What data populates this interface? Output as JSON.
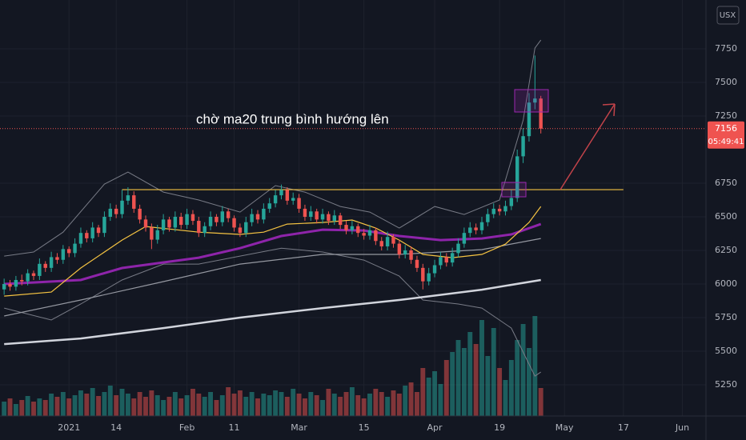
{
  "chart_data": {
    "type": "candlestick",
    "currency": "USX",
    "annotation": "chờ ma20 trung bình hướng lên",
    "countdown": "05:49:41",
    "up_color": "#26a69a",
    "down_color": "#ef5350",
    "grid": true,
    "xlim": [
      -0.7,
      119
    ],
    "xticks": [
      {
        "value": 11,
        "label": "2021"
      },
      {
        "value": 19,
        "label": "14"
      },
      {
        "value": 31,
        "label": "Feb"
      },
      {
        "value": 39,
        "label": "11"
      },
      {
        "value": 50,
        "label": "Mar"
      },
      {
        "value": 61,
        "label": "15"
      },
      {
        "value": 73,
        "label": "Apr"
      },
      {
        "value": 84,
        "label": "19"
      },
      {
        "value": 95,
        "label": "May"
      },
      {
        "value": 105,
        "label": "17"
      },
      {
        "value": 115,
        "label": "Jun"
      }
    ],
    "ylim": [
      5018,
      8113
    ],
    "yticks": [
      5250,
      5500,
      5750,
      6000,
      6250,
      6500,
      6750,
      7250,
      7500,
      7750
    ],
    "volume_lim": [
      0,
      150
    ],
    "x": [
      0,
      1,
      2,
      3,
      4,
      5,
      6,
      7,
      8,
      9,
      10,
      11,
      12,
      13,
      14,
      15,
      16,
      17,
      18,
      19,
      20,
      21,
      22,
      23,
      24,
      25,
      26,
      27,
      28,
      29,
      30,
      31,
      32,
      33,
      34,
      35,
      36,
      37,
      38,
      39,
      40,
      41,
      42,
      43,
      44,
      45,
      46,
      47,
      48,
      49,
      50,
      51,
      52,
      53,
      54,
      55,
      56,
      57,
      58,
      59,
      60,
      61,
      62,
      63,
      64,
      65,
      66,
      67,
      68,
      69,
      70,
      71,
      72,
      73,
      74,
      75,
      76,
      77,
      78,
      79,
      80,
      81,
      82,
      83,
      84,
      85,
      86,
      87,
      88,
      89,
      90,
      91
    ],
    "open": [
      5960,
      6000,
      5980,
      6030,
      6020,
      6080,
      6060,
      6150,
      6120,
      6200,
      6180,
      6260,
      6230,
      6300,
      6380,
      6340,
      6420,
      6380,
      6500,
      6560,
      6520,
      6620,
      6660,
      6560,
      6480,
      6420,
      6330,
      6400,
      6480,
      6420,
      6500,
      6440,
      6520,
      6470,
      6380,
      6430,
      6500,
      6460,
      6540,
      6490,
      6420,
      6380,
      6460,
      6520,
      6480,
      6560,
      6600,
      6660,
      6700,
      6620,
      6640,
      6560,
      6500,
      6540,
      6480,
      6520,
      6470,
      6510,
      6440,
      6400,
      6430,
      6380,
      6360,
      6400,
      6320,
      6280,
      6350,
      6300,
      6220,
      6250,
      6180,
      6120,
      6020,
      6080,
      6140,
      6200,
      6160,
      6230,
      6300,
      6380,
      6420,
      6400,
      6460,
      6520,
      6560,
      6540,
      6580,
      6640,
      6950,
      7100,
      7350,
      7380
    ],
    "high": [
      6040,
      6030,
      6060,
      6070,
      6110,
      6100,
      6190,
      6170,
      6240,
      6230,
      6290,
      6280,
      6340,
      6420,
      6400,
      6460,
      6440,
      6540,
      6600,
      6590,
      6700,
      6720,
      6690,
      6590,
      6510,
      6450,
      6440,
      6520,
      6500,
      6540,
      6530,
      6560,
      6550,
      6500,
      6460,
      6540,
      6520,
      6580,
      6560,
      6510,
      6450,
      6500,
      6560,
      6550,
      6600,
      6640,
      6700,
      6740,
      6720,
      6680,
      6670,
      6590,
      6580,
      6560,
      6560,
      6540,
      6550,
      6530,
      6470,
      6470,
      6450,
      6410,
      6440,
      6420,
      6350,
      6390,
      6370,
      6330,
      6290,
      6280,
      6210,
      6150,
      6120,
      6180,
      6240,
      6230,
      6270,
      6340,
      6420,
      6460,
      6450,
      6500,
      6560,
      6600,
      6590,
      6620,
      6700,
      7000,
      7160,
      7420,
      7700,
      7400
    ],
    "low": [
      5920,
      5950,
      5950,
      5990,
      5990,
      6030,
      6030,
      6090,
      6090,
      6150,
      6150,
      6200,
      6200,
      6270,
      6310,
      6310,
      6350,
      6350,
      6470,
      6490,
      6490,
      6590,
      6530,
      6450,
      6390,
      6260,
      6300,
      6370,
      6390,
      6390,
      6410,
      6410,
      6440,
      6350,
      6350,
      6400,
      6430,
      6430,
      6460,
      6390,
      6350,
      6350,
      6430,
      6450,
      6450,
      6530,
      6570,
      6630,
      6590,
      6590,
      6530,
      6470,
      6470,
      6450,
      6450,
      6440,
      6440,
      6410,
      6370,
      6370,
      6350,
      6330,
      6330,
      6290,
      6250,
      6250,
      6270,
      6190,
      6190,
      6150,
      6090,
      5960,
      5990,
      6050,
      6110,
      6130,
      6130,
      6200,
      6270,
      6350,
      6370,
      6370,
      6430,
      6490,
      6510,
      6510,
      6550,
      6610,
      6900,
      7060,
      7300,
      7120
    ],
    "close": [
      6000,
      5980,
      6030,
      6020,
      6080,
      6060,
      6150,
      6120,
      6200,
      6180,
      6260,
      6230,
      6300,
      6380,
      6340,
      6420,
      6380,
      6500,
      6560,
      6520,
      6620,
      6660,
      6560,
      6480,
      6420,
      6330,
      6400,
      6480,
      6420,
      6500,
      6440,
      6520,
      6470,
      6380,
      6430,
      6500,
      6460,
      6540,
      6490,
      6420,
      6380,
      6460,
      6520,
      6480,
      6560,
      6600,
      6660,
      6700,
      6620,
      6640,
      6560,
      6500,
      6540,
      6480,
      6520,
      6470,
      6510,
      6440,
      6400,
      6430,
      6380,
      6360,
      6400,
      6320,
      6280,
      6350,
      6300,
      6220,
      6250,
      6180,
      6120,
      6020,
      6080,
      6140,
      6200,
      6160,
      6230,
      6300,
      6380,
      6420,
      6400,
      6460,
      6520,
      6560,
      6540,
      6580,
      6640,
      6950,
      7100,
      7350,
      7380,
      7156
    ],
    "volume": [
      18,
      22,
      15,
      20,
      25,
      18,
      22,
      20,
      28,
      24,
      30,
      22,
      26,
      32,
      28,
      35,
      25,
      30,
      38,
      26,
      34,
      28,
      22,
      30,
      24,
      32,
      26,
      20,
      24,
      30,
      22,
      26,
      34,
      28,
      24,
      30,
      20,
      26,
      36,
      28,
      32,
      24,
      30,
      22,
      28,
      26,
      32,
      30,
      24,
      34,
      28,
      22,
      30,
      26,
      20,
      34,
      28,
      24,
      30,
      36,
      26,
      22,
      28,
      34,
      30,
      24,
      32,
      28,
      38,
      42,
      30,
      60,
      48,
      56,
      40,
      70,
      80,
      95,
      85,
      105,
      90,
      120,
      75,
      110,
      60,
      45,
      70,
      95,
      115,
      85,
      125,
      35
    ],
    "overlays": [
      {
        "color": "#787b86",
        "x": [
          0,
          5,
          10,
          17,
          21,
          27,
          33,
          40,
          46,
          51,
          57,
          62,
          67,
          73,
          78,
          84,
          88,
          90,
          91
        ],
        "values": [
          6208,
          6238,
          6386,
          6743,
          6833,
          6684,
          6625,
          6535,
          6732,
          6684,
          6577,
          6535,
          6416,
          6577,
          6517,
          6625,
          7219,
          7755,
          7815
        ]
      },
      {
        "color": "#787b86",
        "x": [
          0,
          8,
          13,
          20,
          27,
          33,
          40,
          47,
          54,
          61,
          67,
          71,
          77,
          81,
          86,
          90,
          91
        ],
        "values": [
          5821,
          5732,
          5851,
          6030,
          6148,
          6148,
          6208,
          6267,
          6238,
          6178,
          6059,
          5881,
          5851,
          5821,
          5672,
          5315,
          5345
        ]
      },
      {
        "color": "#d1d4dc",
        "x": [
          0,
          13,
          27,
          40,
          54,
          67,
          81,
          91
        ],
        "values": [
          5553,
          5595,
          5672,
          5750,
          5821,
          5881,
          5958,
          6030
        ]
      },
      {
        "color": "#9598a1",
        "x": [
          0,
          13,
          27,
          40,
          54,
          67,
          81,
          91
        ],
        "values": [
          5762,
          5881,
          6018,
          6148,
          6220,
          6220,
          6256,
          6339
        ]
      },
      {
        "color": "#8e24aa",
        "x": [
          0,
          13,
          20,
          33,
          40,
          47,
          54,
          61,
          67,
          74,
          81,
          86,
          91
        ],
        "values": [
          6000,
          6030,
          6119,
          6196,
          6267,
          6357,
          6404,
          6398,
          6357,
          6327,
          6339,
          6369,
          6446
        ]
      },
      {
        "color": "#f5c342",
        "x": [
          0,
          8,
          13,
          20,
          24,
          33,
          40,
          44,
          48,
          54,
          59,
          63,
          67,
          71,
          76,
          81,
          85,
          89,
          91
        ],
        "values": [
          5910,
          5940,
          6119,
          6327,
          6428,
          6386,
          6369,
          6386,
          6446,
          6458,
          6476,
          6416,
          6327,
          6220,
          6196,
          6220,
          6297,
          6458,
          6577
        ]
      }
    ],
    "level": {
      "value": 6702,
      "x": [
        20,
        105
      ],
      "color": "#f5c342"
    }
  }
}
